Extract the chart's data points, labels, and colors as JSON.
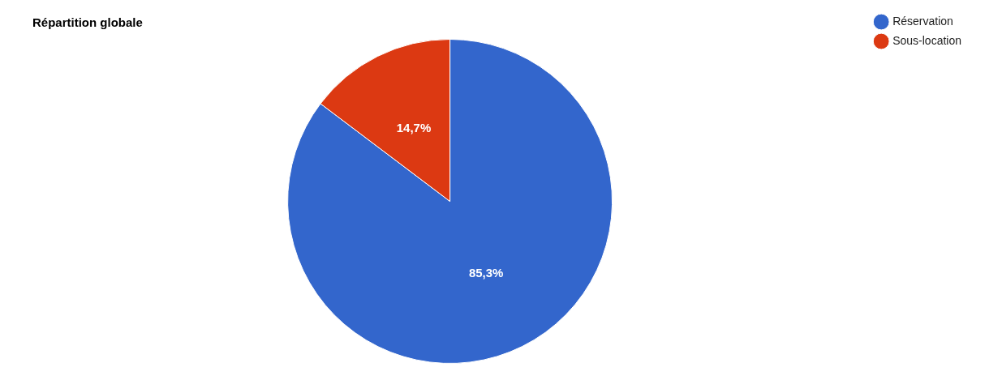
{
  "chart_data": {
    "type": "pie",
    "title": "Répartition globale",
    "categories": [
      "Réservation",
      "Sous-location"
    ],
    "values": [
      85.3,
      14.7
    ],
    "colors": [
      "#3366cc",
      "#dc3912"
    ],
    "value_labels": [
      "85,3%",
      "14,7%"
    ],
    "legend": "top right"
  }
}
